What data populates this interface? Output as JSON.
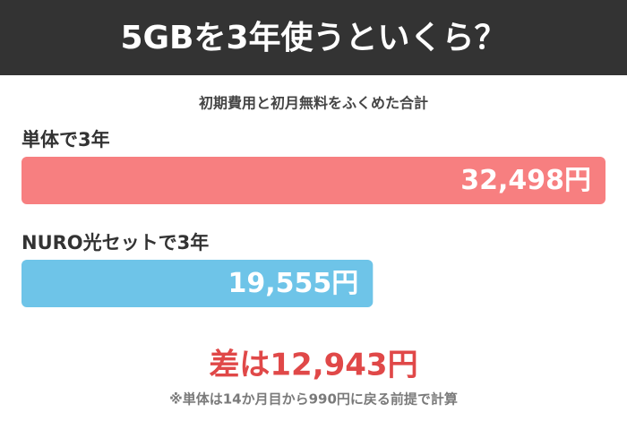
{
  "chart_data": {
    "type": "bar",
    "orientation": "horizontal",
    "title": "5GBを3年使うといくら？",
    "subtitle": "初期費用と初月無料をふくめた合計",
    "categories": [
      "単体で3年",
      "NURO光セットで3年"
    ],
    "values": [
      32498,
      19555
    ],
    "value_labels": [
      "32,498円",
      "19,555円"
    ],
    "colors": [
      "#f77f80",
      "#6ec4e8"
    ],
    "annotation": "差は12,943円",
    "footnote": "※単体は14か月目から990円に戻る前提で計算"
  }
}
